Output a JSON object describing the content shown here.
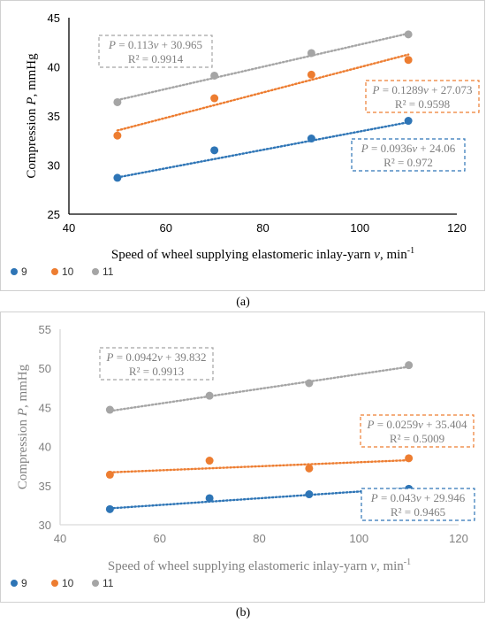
{
  "chart_data": [
    {
      "type": "scatter",
      "panel_label": "(a)",
      "xlabel": "Speed of wheel supplying elastomeric inlay-yarn",
      "xlabel_var": "v",
      "xlabel_unit": ", min",
      "xlabel_sup": "-1",
      "ylabel": "Compression",
      "ylabel_var": "P",
      "ylabel_unit": ", mmHg",
      "xlim": [
        40,
        120
      ],
      "ylim": [
        25,
        45
      ],
      "xticks": [
        40,
        60,
        80,
        100,
        120
      ],
      "yticks": [
        25,
        30,
        35,
        40,
        45
      ],
      "grid": false,
      "legend_position": "bottom-left",
      "style": "dark",
      "series": [
        {
          "name": "9",
          "color": "#2e75b6",
          "x": [
            50,
            70,
            90,
            110
          ],
          "y": [
            28.7,
            31.5,
            32.7,
            34.5
          ],
          "trend": {
            "slope": 0.0936,
            "intercept": 24.06
          },
          "equation": {
            "var": "P",
            "rest": " = 0.0936",
            "xvar": "v",
            "tail": " + 24.06",
            "r2": "R² = 0.972"
          }
        },
        {
          "name": "10",
          "color": "#ed7d31",
          "x": [
            50,
            70,
            90,
            110
          ],
          "y": [
            33.0,
            36.8,
            39.2,
            40.7
          ],
          "trend": {
            "slope": 0.1289,
            "intercept": 27.073
          },
          "equation": {
            "var": "P",
            "rest": " = 0.1289",
            "xvar": "v",
            "tail": " + 27.073",
            "r2": "R² = 0.9598"
          }
        },
        {
          "name": "11",
          "color": "#a5a5a5",
          "x": [
            50,
            70,
            90,
            110
          ],
          "y": [
            36.4,
            39.1,
            41.4,
            43.3
          ],
          "trend": {
            "slope": 0.113,
            "intercept": 30.965
          },
          "equation": {
            "var": "P",
            "rest": " = 0.113",
            "xvar": "v",
            "tail": " + 30.965",
            "r2": "R² = 0.9914"
          }
        }
      ]
    },
    {
      "type": "scatter",
      "panel_label": "(b)",
      "xlabel": "Speed of wheel supplying elastomeric inlay-yarn",
      "xlabel_var": "v",
      "xlabel_unit": ", min",
      "xlabel_sup": "-1",
      "ylabel": "Compression",
      "ylabel_var": "P",
      "ylabel_unit": ", mmHg",
      "xlim": [
        40,
        120
      ],
      "ylim": [
        30,
        55
      ],
      "xticks": [
        40,
        60,
        80,
        100,
        120
      ],
      "yticks": [
        30,
        35,
        40,
        45,
        50,
        55
      ],
      "grid": false,
      "legend_position": "bottom-left",
      "style": "light",
      "series": [
        {
          "name": "9",
          "color": "#2e75b6",
          "x": [
            50,
            70,
            90,
            110
          ],
          "y": [
            32.0,
            33.4,
            33.9,
            34.6
          ],
          "trend": {
            "slope": 0.043,
            "intercept": 29.946
          },
          "equation": {
            "var": "P",
            "rest": " = 0.043",
            "xvar": "v",
            "tail": " + 29.946",
            "r2": "R² = 0.9465"
          }
        },
        {
          "name": "10",
          "color": "#ed7d31",
          "x": [
            50,
            70,
            90,
            110
          ],
          "y": [
            36.4,
            38.2,
            37.2,
            38.5
          ],
          "trend": {
            "slope": 0.0259,
            "intercept": 35.404
          },
          "equation": {
            "var": "P",
            "rest": " = 0.0259",
            "xvar": "v",
            "tail": " + 35.404",
            "r2": "R² = 0.5009"
          }
        },
        {
          "name": "11",
          "color": "#a5a5a5",
          "x": [
            50,
            70,
            90,
            110
          ],
          "y": [
            44.7,
            46.5,
            48.1,
            50.4
          ],
          "trend": {
            "slope": 0.0942,
            "intercept": 39.832
          },
          "equation": {
            "var": "P",
            "rest": " = 0.0942",
            "xvar": "v",
            "tail": " + 39.832",
            "r2": "R² = 0.9913"
          }
        }
      ]
    }
  ]
}
